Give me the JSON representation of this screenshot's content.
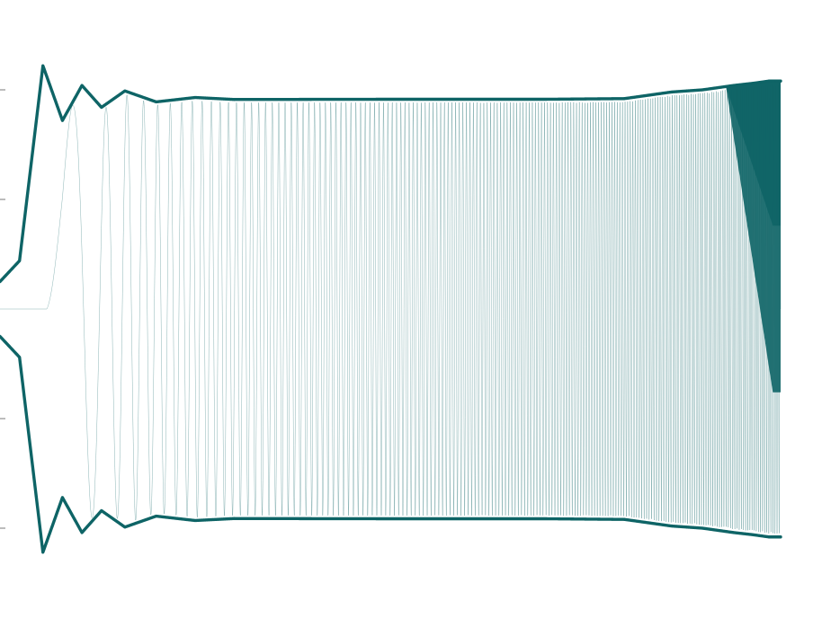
{
  "chart_data": {
    "type": "line",
    "title": "",
    "xlabel": "",
    "ylabel": "",
    "grid": false,
    "legend": "none",
    "xlim": [
      0,
      1
    ],
    "ylim": [
      -1.15,
      1.15
    ],
    "y_ticks": [
      -1,
      -0.5,
      0.5,
      1
    ],
    "y_tick_labels": [
      "",
      "",
      "",
      ""
    ],
    "series": [
      {
        "kind": "chirp-signal",
        "color": "#0e6466",
        "x_start": 0.06,
        "x_end": 1.0,
        "amplitude_plateau": 0.957,
        "initial_frequency_cycles": 1,
        "final_frequency_cycles": 360
      },
      {
        "kind": "upper-envelope",
        "color": "#0e6466",
        "points": [
          [
            0.0,
            0.125
          ],
          [
            0.025,
            0.22
          ],
          [
            0.055,
            1.11
          ],
          [
            0.08,
            0.86
          ],
          [
            0.105,
            1.02
          ],
          [
            0.13,
            0.92
          ],
          [
            0.16,
            0.995
          ],
          [
            0.2,
            0.945
          ],
          [
            0.25,
            0.965
          ],
          [
            0.3,
            0.956
          ],
          [
            0.5,
            0.957
          ],
          [
            0.7,
            0.957
          ],
          [
            0.8,
            0.96
          ],
          [
            0.86,
            0.99
          ],
          [
            0.9,
            1.0
          ],
          [
            0.94,
            1.02
          ],
          [
            0.965,
            1.03
          ],
          [
            0.985,
            1.04
          ],
          [
            1.0,
            1.04
          ]
        ]
      },
      {
        "kind": "lower-envelope",
        "color": "#0e6466",
        "points": [
          [
            0.0,
            -0.125
          ],
          [
            0.025,
            -0.22
          ],
          [
            0.055,
            -1.11
          ],
          [
            0.08,
            -0.86
          ],
          [
            0.105,
            -1.02
          ],
          [
            0.13,
            -0.92
          ],
          [
            0.16,
            -0.995
          ],
          [
            0.2,
            -0.945
          ],
          [
            0.25,
            -0.965
          ],
          [
            0.3,
            -0.956
          ],
          [
            0.5,
            -0.957
          ],
          [
            0.7,
            -0.957
          ],
          [
            0.8,
            -0.96
          ],
          [
            0.86,
            -0.99
          ],
          [
            0.9,
            -1.0
          ],
          [
            0.94,
            -1.02
          ],
          [
            0.965,
            -1.03
          ],
          [
            0.985,
            -1.04
          ],
          [
            1.0,
            -1.04
          ]
        ]
      }
    ]
  }
}
